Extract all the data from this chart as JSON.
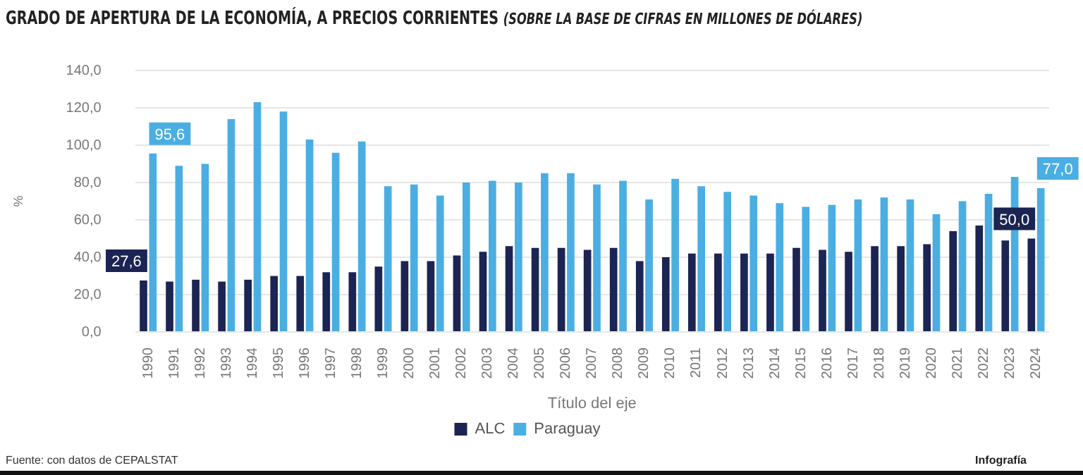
{
  "chart_data": {
    "type": "bar",
    "title": "GRADO DE APERTURA DE LA ECONOMÍA, A PRECIOS CORRIENTES",
    "subtitle": "(SOBRE LA BASE DE CIFRAS EN MILLONES DE DÓLARES)",
    "xlabel": "Título del eje",
    "ylabel": "%",
    "categories": [
      "1990",
      "1991",
      "1992",
      "1993",
      "1994",
      "1995",
      "1996",
      "1997",
      "1998",
      "1999",
      "2000",
      "2001",
      "2002",
      "2003",
      "2004",
      "2005",
      "2006",
      "2007",
      "2008",
      "2009",
      "2010",
      "2011",
      "2012",
      "2013",
      "2014",
      "2015",
      "2016",
      "2017",
      "2018",
      "2019",
      "2020",
      "2021",
      "2022",
      "2023",
      "2024"
    ],
    "series": [
      {
        "name": "ALC",
        "color": "#1b2452",
        "values": [
          27.6,
          27,
          28,
          27,
          28,
          30,
          30,
          32,
          32,
          35,
          38,
          38,
          41,
          43,
          46,
          45,
          45,
          44,
          45,
          38,
          40,
          42,
          42,
          42,
          42,
          45,
          44,
          43,
          46,
          46,
          47,
          54,
          57,
          49,
          50.0
        ],
        "value_labels": [
          "27,6",
          null,
          null,
          null,
          null,
          null,
          null,
          null,
          null,
          null,
          null,
          null,
          null,
          null,
          null,
          null,
          null,
          null,
          null,
          null,
          null,
          null,
          null,
          null,
          null,
          null,
          null,
          null,
          null,
          null,
          null,
          null,
          null,
          null,
          "50,0"
        ]
      },
      {
        "name": "Paraguay",
        "color": "#4aaee3",
        "values": [
          95.6,
          89,
          90,
          114,
          123,
          118,
          103,
          96,
          102,
          78,
          79,
          73,
          80,
          81,
          80,
          85,
          85,
          79,
          81,
          71,
          82,
          78,
          75,
          73,
          69,
          67,
          68,
          71,
          72,
          71,
          63,
          70,
          74,
          83,
          77.0
        ],
        "value_labels": [
          "95,6",
          null,
          null,
          null,
          null,
          null,
          null,
          null,
          null,
          null,
          null,
          null,
          null,
          null,
          null,
          null,
          null,
          null,
          null,
          null,
          null,
          null,
          null,
          null,
          null,
          null,
          null,
          null,
          null,
          null,
          null,
          null,
          null,
          null,
          "77,0"
        ]
      }
    ],
    "ylim": [
      0,
      140
    ],
    "yticks": [
      {
        "value": 0,
        "label": "0,0"
      },
      {
        "value": 20,
        "label": "20,0"
      },
      {
        "value": 40,
        "label": "40,0"
      },
      {
        "value": 60,
        "label": "60,0"
      },
      {
        "value": 80,
        "label": "80,0"
      },
      {
        "value": 100,
        "label": "100,0"
      },
      {
        "value": 120,
        "label": "120,0"
      },
      {
        "value": 140,
        "label": "140,0"
      }
    ],
    "grid": "y",
    "legend": "bottom",
    "annotations": [
      "Fuente: con datos de CEPALSTAT",
      "Infografía"
    ]
  }
}
